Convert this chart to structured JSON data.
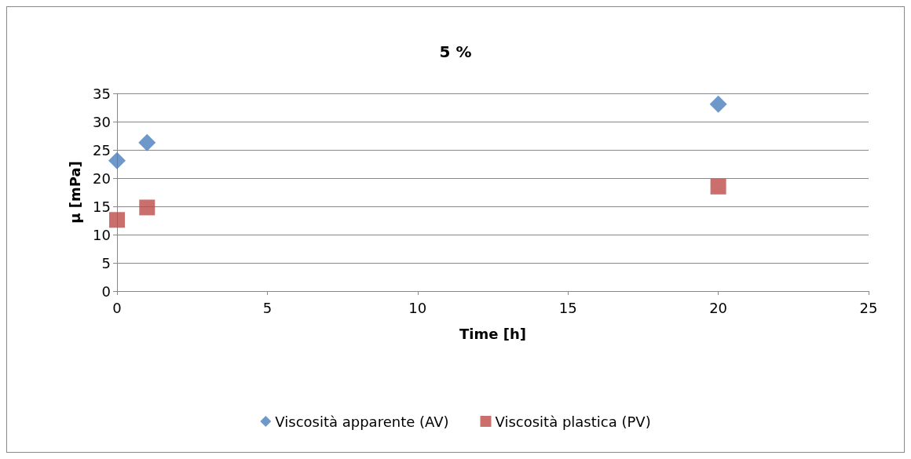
{
  "chart_data": {
    "type": "scatter",
    "title": "5 %",
    "xlabel": "Time [h]",
    "ylabel": "µ [mPa]",
    "x": [
      0,
      1,
      20
    ],
    "series": [
      {
        "name": "Viscosità apparente (AV)",
        "color": "#4a7ebb",
        "marker": "diamond",
        "values": [
          23.1,
          26.3,
          33.1
        ]
      },
      {
        "name": "Viscosità plastica (PV)",
        "color": "#be4b48",
        "marker": "square",
        "values": [
          12.6,
          14.8,
          18.5
        ]
      }
    ],
    "xlim": [
      0,
      25
    ],
    "xticks": [
      0,
      5,
      10,
      15,
      20,
      25
    ],
    "ylim": [
      0,
      35
    ],
    "yticks": [
      0,
      5,
      10,
      15,
      20,
      25,
      30,
      35
    ],
    "grid": "y",
    "legend": "bottom"
  }
}
